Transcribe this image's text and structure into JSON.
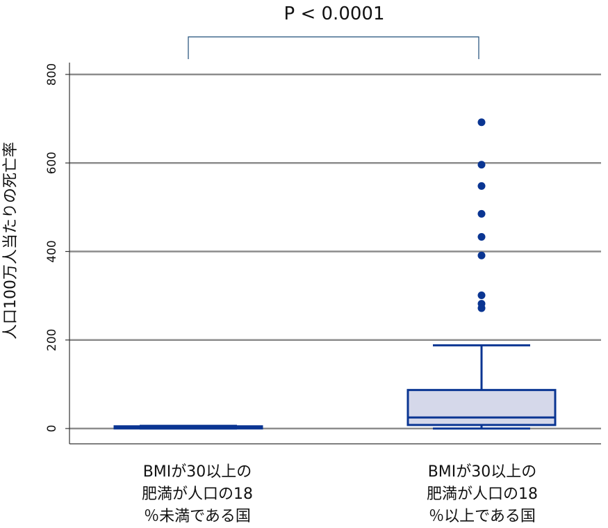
{
  "chart_data": {
    "type": "box",
    "ylabel": "人口100万人当たりの死亡率",
    "ylim": [
      0,
      800
    ],
    "yticks": [
      "0",
      "200",
      "400",
      "600",
      "800"
    ],
    "grid": true,
    "annotation": "P < 0.0001",
    "categories": [
      {
        "lines": [
          "BMIが30以上の",
          "肥満が人口の18",
          "％未満である国"
        ],
        "box": {
          "min": 0,
          "q1": 1,
          "median": 2,
          "q3": 5,
          "max": 6
        },
        "outliers": []
      },
      {
        "lines": [
          "BMIが30以上の",
          "肥満が人口の18",
          "％以上である国"
        ],
        "box": {
          "min": 0,
          "q1": 8,
          "median": 25,
          "q3": 87,
          "max": 188
        },
        "outliers": [
          692,
          596,
          548,
          485,
          433,
          391,
          301,
          282,
          272
        ]
      }
    ],
    "colors": {
      "box_fill": "#d5d8ea",
      "box_stroke": "#0a3592",
      "points": "#0a3592",
      "grid": "#8c8c8c",
      "bracket": "#1f4e79"
    }
  }
}
